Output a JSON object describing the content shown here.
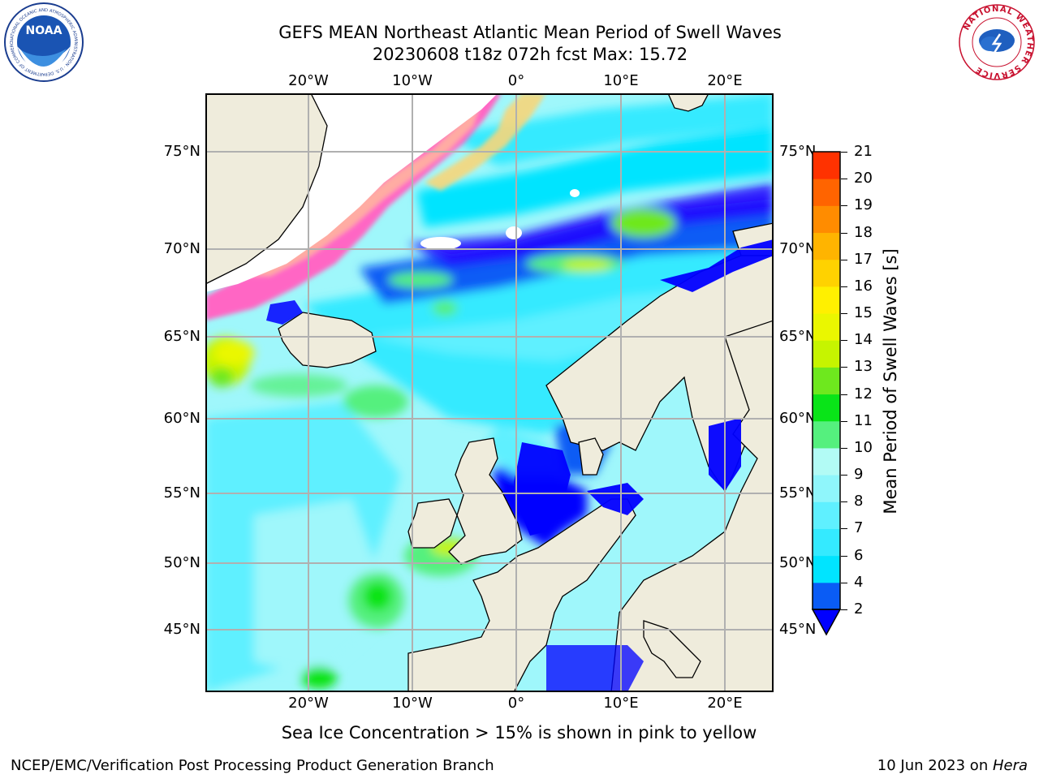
{
  "header": {
    "title_line1": "GEFS MEAN Northeast Atlantic Mean Period of Swell Waves",
    "title_line2": "20230608 t18z 072h fcst   Max: 15.72"
  },
  "logos": {
    "left": "NOAA",
    "left_ring": "NATIONAL OCEANIC AND ATMOSPHERIC ADMINISTRATION · U.S. DEPARTMENT OF COMMERCE",
    "right_ring": "NATIONAL WEATHER SERVICE"
  },
  "axes": {
    "lon_labels": [
      "20°W",
      "10°W",
      "0°",
      "10°E",
      "20°E"
    ],
    "lat_labels": [
      "75°N",
      "70°N",
      "65°N",
      "60°N",
      "55°N",
      "50°N",
      "45°N"
    ]
  },
  "colorbar": {
    "title": "Mean Period of Swell Waves [s]",
    "labels": [
      "2",
      "4",
      "6",
      "7",
      "8",
      "9",
      "10",
      "11",
      "12",
      "13",
      "14",
      "15",
      "16",
      "17",
      "18",
      "19",
      "20",
      "21"
    ],
    "colors": [
      "#0a5cf5",
      "#00e4ff",
      "#34eaff",
      "#5ff0ff",
      "#8ff6fb",
      "#b2fbf5",
      "#55f07e",
      "#09e418",
      "#6ee81e",
      "#c6f400",
      "#eaf700",
      "#fff000",
      "#ffd200",
      "#ffb400",
      "#ff8c00",
      "#ff6400",
      "#ff3200",
      "#ff0a00"
    ],
    "extend_color": "#0000ff"
  },
  "caption": "Sea Ice Concentration > 15% is shown in pink to yellow",
  "footer": {
    "left": "NCEP/EMC/Verification Post Processing Product Generation Branch",
    "right_prefix": "10 Jun 2023 on ",
    "right_host": "Hera"
  }
}
